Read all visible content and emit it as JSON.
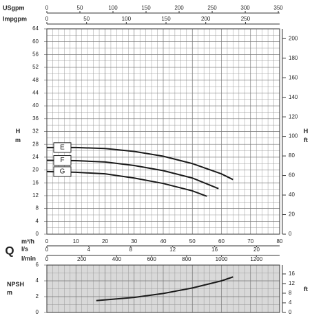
{
  "chart_data": [
    {
      "type": "line",
      "ylabel": "H",
      "ylabel_unit": "m",
      "y2label": "H",
      "y2label_unit": "ft",
      "ylim": [
        0,
        64
      ],
      "yticks": [
        0,
        4,
        8,
        12,
        16,
        20,
        24,
        28,
        32,
        36,
        40,
        44,
        48,
        52,
        56,
        60,
        64
      ],
      "y2lim": [
        0,
        210
      ],
      "y2ticks": [
        0,
        20,
        40,
        60,
        80,
        100,
        120,
        140,
        160,
        180,
        200
      ],
      "x_symbol": "Q",
      "xlabel": "m³/h",
      "xlim": [
        0,
        80
      ],
      "xticks": [
        0,
        10,
        20,
        30,
        40,
        50,
        60,
        70,
        80
      ],
      "top_axes": [
        {
          "label": "USgpm",
          "xlim": [
            0,
            352
          ],
          "xticks": [
            0,
            50,
            100,
            150,
            200,
            250,
            300,
            350
          ]
        },
        {
          "label": "Impgpm",
          "xlim": [
            0,
            293
          ],
          "xticks": [
            0,
            50,
            100,
            150,
            200,
            250
          ]
        }
      ],
      "bottom_axes": [
        {
          "label": "l/s",
          "xlim": [
            0,
            22.2
          ],
          "xticks": [
            0,
            4,
            8,
            12,
            16,
            20
          ]
        },
        {
          "label": "l/min",
          "xlim": [
            0,
            1333
          ],
          "xticks": [
            0,
            200,
            400,
            600,
            800,
            1000,
            1200
          ]
        }
      ],
      "grid": true,
      "series": [
        {
          "name": "E",
          "color": "#1a1a1a",
          "x": [
            0,
            10,
            20,
            30,
            40,
            50,
            60,
            64
          ],
          "values": [
            27,
            27,
            26.7,
            25.8,
            24.3,
            22,
            18.8,
            17
          ]
        },
        {
          "name": "F",
          "color": "#1a1a1a",
          "x": [
            0,
            10,
            20,
            30,
            40,
            50,
            59
          ],
          "values": [
            23,
            22.9,
            22.5,
            21.4,
            19.8,
            17.5,
            14.2
          ]
        },
        {
          "name": "G",
          "color": "#1a1a1a",
          "x": [
            0,
            10,
            20,
            30,
            40,
            50,
            55
          ],
          "values": [
            19.5,
            19.3,
            18.8,
            17.5,
            15.8,
            13.5,
            11.8
          ]
        }
      ]
    },
    {
      "type": "line",
      "ylabel": "NPSH",
      "ylabel_unit": "m",
      "y2label_unit": "ft",
      "ylim": [
        0,
        6
      ],
      "yticks": [
        0,
        2,
        4,
        6
      ],
      "y2lim": [
        0,
        19.69
      ],
      "y2ticks": [
        0,
        4,
        8,
        12,
        16
      ],
      "xlim": [
        0,
        80
      ],
      "grid": true,
      "background": "#d9d9d9",
      "series": [
        {
          "color": "#1a1a1a",
          "x": [
            17,
            30,
            40,
            50,
            60,
            64
          ],
          "values": [
            1.5,
            1.9,
            2.4,
            3.1,
            4.0,
            4.5
          ]
        }
      ]
    }
  ]
}
